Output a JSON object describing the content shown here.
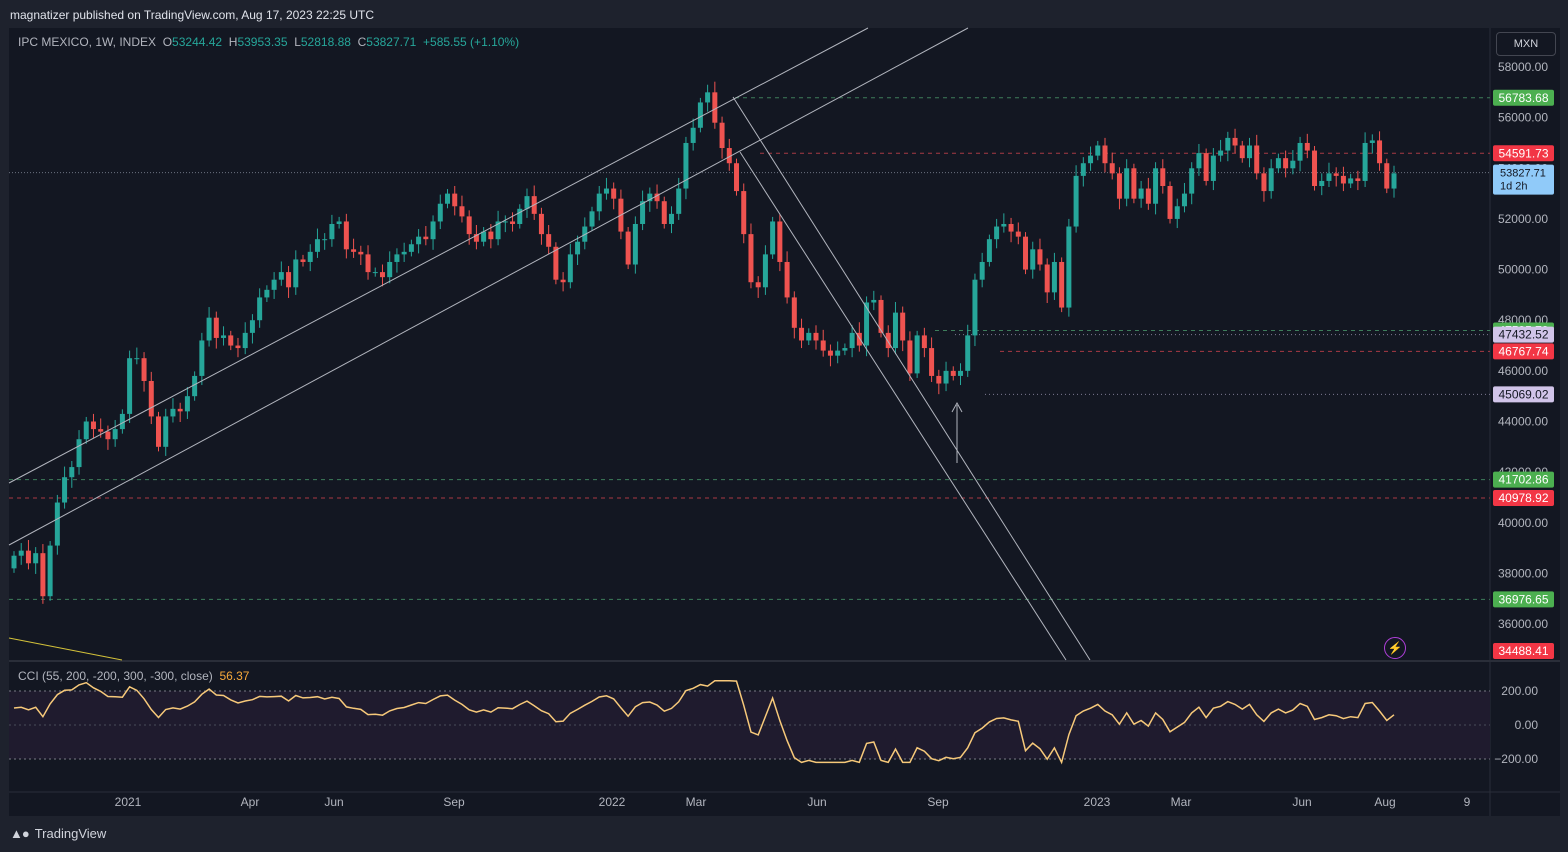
{
  "header": {
    "publisher": "magnatizer published on TradingView.com, Aug 17, 2023 22:25 UTC"
  },
  "legend": {
    "symbol": "IPC MEXICO, 1W, INDEX",
    "open_label": "O",
    "open": "53244.42",
    "high_label": "H",
    "high": "53953.35",
    "low_label": "L",
    "low": "52818.88",
    "close_label": "C",
    "close": "53827.71",
    "change": "+585.55 (+1.10%)"
  },
  "currency_button": "MXN",
  "cci_legend": {
    "label": "CCI (55, 200, -200, 300, -300, close)",
    "value": "56.37"
  },
  "footer": {
    "brand": "TradingView"
  },
  "colors": {
    "up": "#26a69a",
    "down": "#ef5350",
    "background": "#131722",
    "cci_line": "#f7c97a",
    "channel": "#b2b5be",
    "green_label": "#4caf50",
    "red_label": "#f23645"
  },
  "chart_data": [
    {
      "type": "candlestick",
      "title": "IPC MEXICO, 1W, INDEX",
      "ylim": [
        34800,
        58700
      ],
      "y_ticks": [
        "58000.00",
        "56000.00",
        "54000.00",
        "52000.00",
        "50000.00",
        "48000.00",
        "46000.00",
        "44000.00",
        "42000.00",
        "40000.00",
        "38000.00",
        "36000.00"
      ],
      "x_ticks": [
        "2021",
        "Apr",
        "Jun",
        "Sep",
        "2022",
        "Mar",
        "Jun",
        "Sep",
        "2023",
        "Mar",
        "Jun",
        "Aug",
        "9"
      ],
      "price_levels": [
        {
          "value": 56783.68,
          "label": "56783.68",
          "style": "green"
        },
        {
          "value": 54591.73,
          "label": "54591.73",
          "style": "red"
        },
        {
          "value": 47595.79,
          "label": "47595.79",
          "style": "green"
        },
        {
          "value": 47432.52,
          "label": "47432.52",
          "style": "lavender"
        },
        {
          "value": 46767.74,
          "label": "46767.74",
          "style": "red"
        },
        {
          "value": 45069.02,
          "label": "45069.02",
          "style": "lavender"
        },
        {
          "value": 41702.86,
          "label": "41702.86",
          "style": "green"
        },
        {
          "value": 40978.92,
          "label": "40978.92",
          "style": "red"
        },
        {
          "value": 36976.65,
          "label": "36976.65",
          "style": "green"
        },
        {
          "value": 34488.41,
          "label": "34488.41",
          "style": "red"
        }
      ],
      "last_price": {
        "value": 53827.71,
        "label": "53827.71",
        "countdown": "1d 2h"
      },
      "closes": [
        38700,
        38900,
        38400,
        38800,
        37100,
        39100,
        40800,
        41800,
        42200,
        43300,
        44000,
        43700,
        43600,
        43300,
        43700,
        44300,
        46500,
        46500,
        45600,
        44200,
        43000,
        44200,
        44500,
        44400,
        45000,
        45800,
        47200,
        48100,
        47300,
        47400,
        47000,
        46900,
        47500,
        48000,
        48900,
        49200,
        49600,
        49900,
        49300,
        50400,
        50300,
        50700,
        51200,
        51200,
        51800,
        51900,
        50800,
        50700,
        50600,
        49900,
        49900,
        49700,
        50300,
        50600,
        50700,
        51000,
        51300,
        51200,
        51900,
        52600,
        53000,
        52500,
        52100,
        51400,
        51100,
        51500,
        51200,
        51900,
        51900,
        51800,
        52400,
        52900,
        52200,
        51400,
        50900,
        49600,
        49500,
        50600,
        51100,
        51700,
        52300,
        53000,
        53200,
        52800,
        51500,
        50200,
        51800,
        52700,
        53000,
        52700,
        51800,
        52200,
        53200,
        55000,
        55600,
        56600,
        57000,
        55800,
        54800,
        54200,
        53100,
        51400,
        49500,
        49300,
        50600,
        51900,
        50300,
        48900,
        47700,
        47200,
        47500,
        47200,
        46800,
        46600,
        46800,
        46900,
        47500,
        47000,
        48700,
        48800,
        47500,
        46900,
        48300,
        47200,
        45900,
        47400,
        46900,
        45800,
        45500,
        46000,
        45800,
        46000,
        47400,
        49600,
        50300,
        51200,
        51700,
        51800,
        51500,
        51300,
        50000,
        50800,
        50200,
        49100,
        50300,
        48500,
        51700,
        53700,
        54200,
        54500,
        54900,
        54200,
        53800,
        52800,
        54000,
        52800,
        53200,
        52600,
        54000,
        53300,
        52000,
        52500,
        53000,
        54000,
        54600,
        53500,
        54500,
        54700,
        55200,
        54900,
        54400,
        54900,
        53800,
        53100,
        54000,
        54400,
        54000,
        54300,
        55000,
        54700,
        53300,
        53500,
        53800,
        53700,
        53400,
        53600,
        53500,
        55000,
        55100,
        54200,
        53200,
        53800
      ],
      "cci": {
        "series_name": "CCI (55, 200, -200, 300, -300, close)",
        "bands": [
          200,
          -200
        ],
        "y_ticks": [
          "200.00",
          "0.00",
          "−200.00"
        ],
        "ylim": [
          -300,
          300
        ],
        "last": 56.37
      }
    }
  ]
}
